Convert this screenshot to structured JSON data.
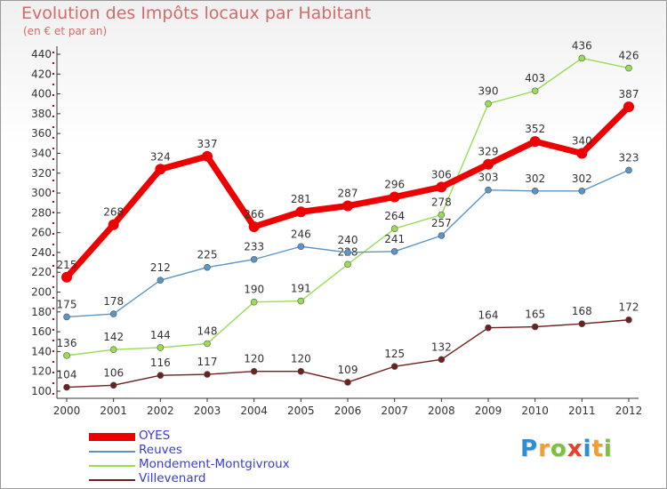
{
  "chart_data": {
    "type": "line",
    "title": "Evolution des Impôts locaux par Habitant",
    "subtitle": "(en € et par an)",
    "x": [
      "2000",
      "2001",
      "2002",
      "2003",
      "2004",
      "2005",
      "2006",
      "2007",
      "2008",
      "2009",
      "2010",
      "2011",
      "2012"
    ],
    "yticks": [
      100,
      120,
      140,
      160,
      180,
      200,
      220,
      240,
      260,
      280,
      300,
      320,
      340,
      360,
      380,
      400,
      420,
      440
    ],
    "ylim": [
      100,
      450
    ],
    "grid": false,
    "legend_position": "bottom-left",
    "series": [
      {
        "name": "OYES",
        "color": "#ee0000",
        "values": [
          215,
          268,
          324,
          337,
          266,
          281,
          287,
          296,
          306,
          329,
          352,
          340,
          387
        ]
      },
      {
        "name": "Reuves",
        "color": "#5a95c8",
        "values": [
          175,
          178,
          212,
          225,
          233,
          246,
          240,
          241,
          257,
          303,
          302,
          302,
          323
        ]
      },
      {
        "name": "Mondement-Montgivroux",
        "color": "#99dd55",
        "values": [
          136,
          142,
          144,
          148,
          190,
          191,
          228,
          264,
          278,
          390,
          403,
          436,
          426
        ]
      },
      {
        "name": "Villevenard",
        "color": "#6e1f1f",
        "values": [
          104,
          106,
          116,
          117,
          120,
          120,
          109,
          125,
          132,
          164,
          165,
          168,
          172
        ]
      }
    ]
  },
  "logo": {
    "letters": [
      "P",
      "r",
      "o",
      "x",
      "i",
      "t",
      "i"
    ],
    "colors": [
      "#2a8fd8",
      "#f0a030",
      "#7cc040",
      "#e84030",
      "#2a8fd8",
      "#f0a030",
      "#7cc040"
    ]
  }
}
